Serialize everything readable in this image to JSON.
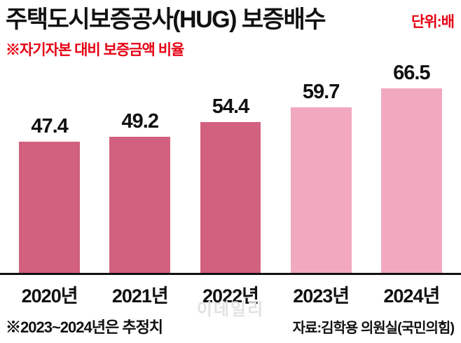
{
  "title": "주택도시보증공사(HUG) 보증배수",
  "unit_label": "단위:배",
  "subtitle": "※자기자본 대비 보증금액 비율",
  "footnote": "※2023~2024년은 추정치",
  "source": "자료:김학용 의원실(국민의힘)",
  "watermark": "이데일리",
  "colors": {
    "accent_red": "#e60013",
    "text": "#111111",
    "actual_bar": "#d2607f",
    "estimate_bar": "#f2a9bf",
    "watermark": "#e2e2e2"
  },
  "chart_data": {
    "type": "bar",
    "title": "주택도시보증공사(HUG) 보증배수",
    "subtitle": "자기자본 대비 보증금액 비율",
    "unit": "배",
    "categories": [
      "2020년",
      "2021년",
      "2022년",
      "2023년",
      "2024년"
    ],
    "values": [
      47.4,
      49.2,
      54.4,
      59.7,
      66.5
    ],
    "estimated_mask": [
      false,
      false,
      false,
      true,
      true
    ],
    "value_labels": true,
    "ylim": [
      0,
      70
    ],
    "grid": false,
    "legend": "none",
    "note": "2023-2024 values are estimates, shown in lighter pink"
  }
}
